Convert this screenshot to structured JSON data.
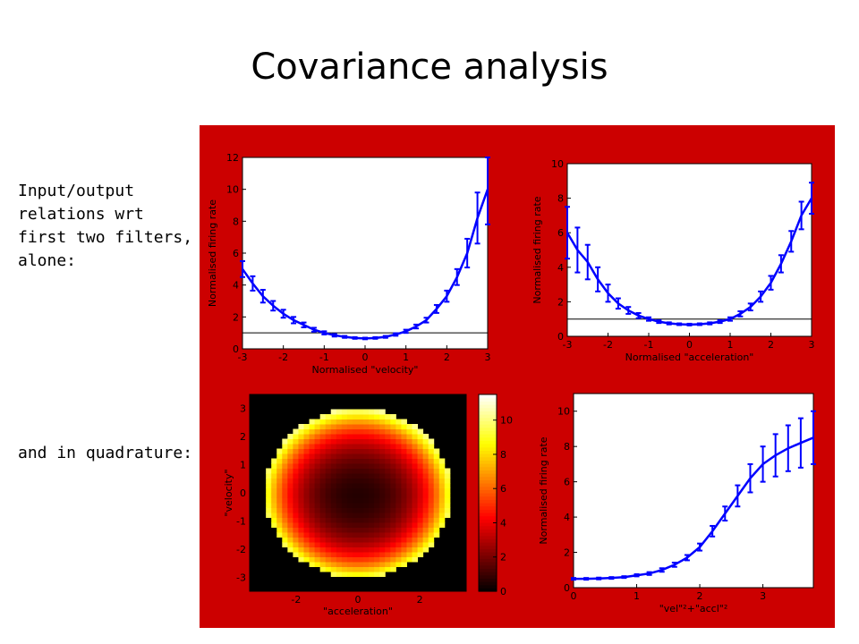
{
  "title": "Covariance analysis",
  "side_text": {
    "lines_top": [
      "Input/output",
      "relations wrt",
      "first two filters,",
      "alone:"
    ],
    "line_bottom": "and in quadrature:"
  },
  "colors": {
    "figure_background": "#cc0000",
    "curve": "#0000ff"
  },
  "chart_data": [
    {
      "type": "line",
      "xlabel": "Normalised \"velocity\"",
      "ylabel": "Normalised firing rate",
      "xlim": [
        -3,
        3
      ],
      "ylim": [
        0,
        12
      ],
      "xticks": [
        "-3",
        "-2",
        "-1",
        "0",
        "1",
        "2",
        "3"
      ],
      "yticks": [
        "0",
        "2",
        "4",
        "6",
        "8",
        "10",
        "12"
      ],
      "x": [
        -3,
        -2.75,
        -2.5,
        -2.25,
        -2,
        -1.75,
        -1.5,
        -1.25,
        -1,
        -0.75,
        -0.5,
        -0.25,
        0,
        0.25,
        0.5,
        0.75,
        1,
        1.25,
        1.5,
        1.75,
        2,
        2.25,
        2.5,
        2.75,
        3
      ],
      "y": [
        5.0,
        4.1,
        3.3,
        2.7,
        2.2,
        1.8,
        1.5,
        1.2,
        1.0,
        0.85,
        0.75,
        0.68,
        0.65,
        0.68,
        0.75,
        0.9,
        1.1,
        1.4,
        1.8,
        2.5,
        3.3,
        4.5,
        6.0,
        8.2,
        10.0
      ],
      "err": [
        0.5,
        0.45,
        0.4,
        0.3,
        0.25,
        0.2,
        0.15,
        0.12,
        0.1,
        0.08,
        0.06,
        0.05,
        0.05,
        0.05,
        0.06,
        0.08,
        0.1,
        0.12,
        0.15,
        0.25,
        0.35,
        0.5,
        0.9,
        1.6,
        2.2
      ],
      "baseline": 1.0
    },
    {
      "type": "line",
      "xlabel": "Normalised \"acceleration\"",
      "ylabel": "Normalised firing rate",
      "xlim": [
        -3,
        3
      ],
      "ylim": [
        0,
        10
      ],
      "xticks": [
        "-3",
        "-2",
        "-1",
        "0",
        "1",
        "2",
        "3"
      ],
      "yticks": [
        "0",
        "2",
        "4",
        "6",
        "8",
        "10"
      ],
      "x": [
        -3,
        -2.75,
        -2.5,
        -2.25,
        -2,
        -1.75,
        -1.5,
        -1.25,
        -1,
        -0.75,
        -0.5,
        -0.25,
        0,
        0.25,
        0.5,
        0.75,
        1,
        1.25,
        1.5,
        1.75,
        2,
        2.25,
        2.5,
        2.75,
        3
      ],
      "y": [
        6.0,
        5.0,
        4.3,
        3.3,
        2.5,
        1.9,
        1.5,
        1.2,
        1.0,
        0.85,
        0.75,
        0.7,
        0.68,
        0.7,
        0.75,
        0.85,
        1.0,
        1.3,
        1.7,
        2.3,
        3.1,
        4.2,
        5.5,
        7.0,
        8.0
      ],
      "err": [
        1.5,
        1.3,
        1.0,
        0.7,
        0.5,
        0.3,
        0.2,
        0.15,
        0.1,
        0.08,
        0.06,
        0.05,
        0.05,
        0.05,
        0.06,
        0.08,
        0.1,
        0.15,
        0.2,
        0.3,
        0.4,
        0.5,
        0.6,
        0.8,
        0.9
      ],
      "baseline": 1.0
    },
    {
      "type": "heatmap",
      "xlabel": "\"acceleration\"",
      "ylabel": "\"velocity\"",
      "xlim": [
        -3.5,
        3.5
      ],
      "ylim": [
        -3.5,
        3.5
      ],
      "xticks": [
        "-2",
        "0",
        "2"
      ],
      "yticks": [
        "-3",
        "-2",
        "-1",
        "0",
        "1",
        "2",
        "3"
      ],
      "radius": 3.0,
      "colorbar_ticks": [
        "0",
        "2",
        "4",
        "6",
        "8",
        "10"
      ],
      "colorbar_range": [
        0,
        11.5
      ],
      "colormap": "hot"
    },
    {
      "type": "line",
      "xlabel": "\"vel\"²+\"accl\"²",
      "ylabel": "Normalised firing rate",
      "xlim": [
        0,
        3.8
      ],
      "ylim": [
        0,
        11
      ],
      "xticks": [
        "0",
        "1",
        "2",
        "3"
      ],
      "yticks": [
        "0",
        "2",
        "4",
        "6",
        "8",
        "10"
      ],
      "x": [
        0,
        0.2,
        0.4,
        0.6,
        0.8,
        1.0,
        1.2,
        1.4,
        1.6,
        1.8,
        2.0,
        2.2,
        2.4,
        2.6,
        2.8,
        3.0,
        3.2,
        3.4,
        3.6,
        3.8
      ],
      "y": [
        0.5,
        0.5,
        0.52,
        0.55,
        0.6,
        0.7,
        0.8,
        1.0,
        1.3,
        1.7,
        2.3,
        3.2,
        4.2,
        5.2,
        6.2,
        7.0,
        7.5,
        7.9,
        8.2,
        8.5
      ],
      "err": [
        0.05,
        0.05,
        0.05,
        0.05,
        0.05,
        0.06,
        0.08,
        0.1,
        0.12,
        0.15,
        0.2,
        0.3,
        0.4,
        0.6,
        0.8,
        1.0,
        1.2,
        1.3,
        1.4,
        1.5
      ]
    }
  ]
}
